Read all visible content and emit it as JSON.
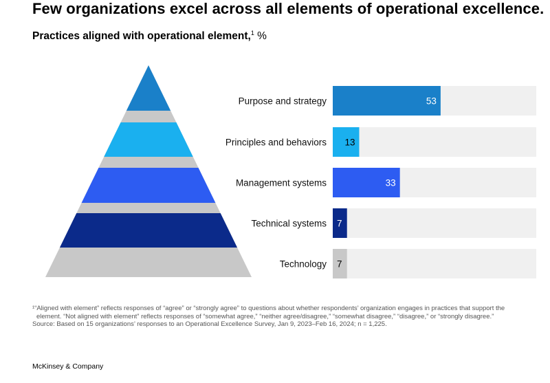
{
  "header": {
    "title": "Few organizations excel across all elements of operational excellence.",
    "subtitle": "Practices aligned with operational element,",
    "subtitle_sup": "1",
    "subtitle_unit": " %"
  },
  "chart_data": {
    "type": "bar",
    "orientation": "horizontal",
    "categories": [
      "Purpose and strategy",
      "Principles and behaviors",
      "Management systems",
      "Technical systems",
      "Technology"
    ],
    "values": [
      53,
      13,
      33,
      7,
      7
    ],
    "data_labels": [
      "53",
      "13",
      "33",
      "7",
      "7"
    ],
    "xlim": [
      0,
      100
    ],
    "unit": "%",
    "colors": [
      "#1a80c9",
      "#1ab0ef",
      "#2d5cf2",
      "#0b2a8a",
      "#c8c8c8"
    ],
    "label_colors": [
      "#ffffff",
      "#000000",
      "#ffffff",
      "#ffffff",
      "#000000"
    ],
    "track_color": "#f0f0f0",
    "pyramid_gray": "#c8c8c8"
  },
  "footer": {
    "footnote": "¹“Aligned with element” reflects responses of “agree” or “strongly agree” to questions about whether respondents’ organization engages in practices that support the element. “Not aligned with element” reflects responses of “somewhat agree,” “neither agree/disagree,” “somewhat disagree,” “disagree,” or “strongly disagree.”",
    "source": "Source: Based on 15 organizations’ responses to an Operational Excellence Survey, Jan 9, 2023–Feb 16, 2024; n = 1,225.",
    "brand": "McKinsey & Company"
  }
}
